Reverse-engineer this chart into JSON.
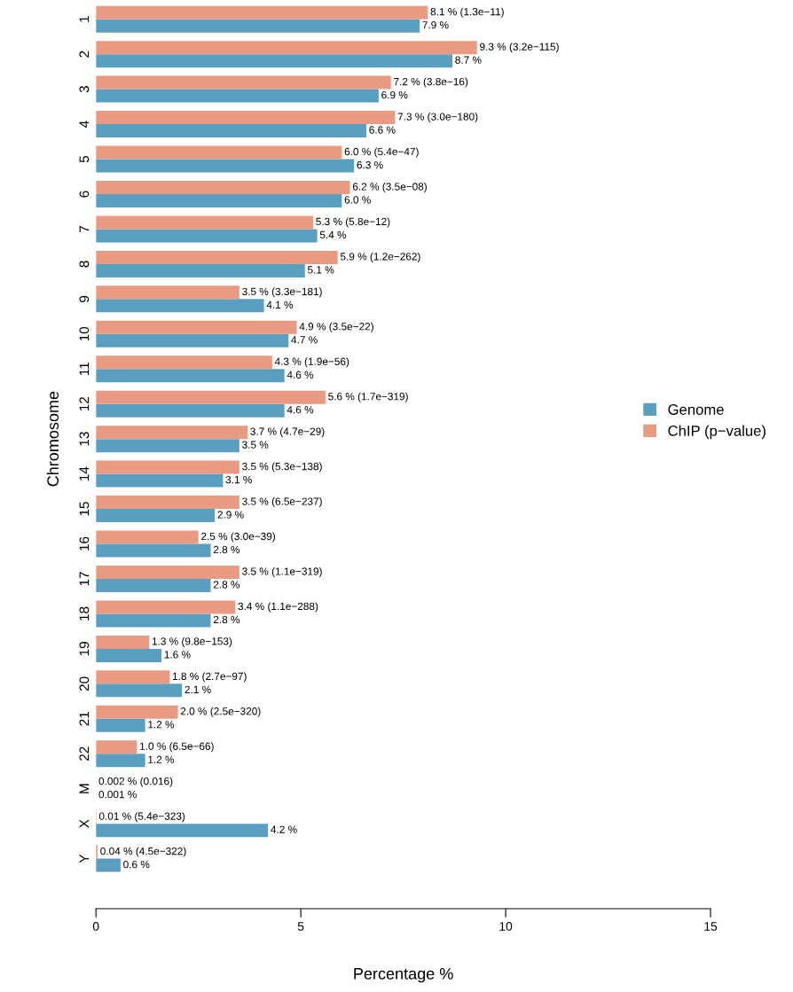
{
  "chart_data": {
    "type": "bar",
    "orientation": "horizontal",
    "xlabel": "Percentage %",
    "ylabel": "Chromosome",
    "categories": [
      "1",
      "2",
      "3",
      "4",
      "5",
      "6",
      "7",
      "8",
      "9",
      "10",
      "11",
      "12",
      "13",
      "14",
      "15",
      "16",
      "17",
      "18",
      "19",
      "20",
      "21",
      "22",
      "M",
      "X",
      "Y"
    ],
    "series": [
      {
        "name": "Genome",
        "color": "#5b9fc0",
        "values": [
          7.9,
          8.7,
          6.9,
          6.6,
          6.3,
          6.0,
          5.4,
          5.1,
          4.1,
          4.7,
          4.6,
          4.6,
          3.5,
          3.1,
          2.9,
          2.8,
          2.8,
          2.8,
          1.6,
          2.1,
          1.2,
          1.2,
          0.001,
          4.2,
          0.6
        ],
        "value_labels": [
          "7.9 %",
          "8.7 %",
          "6.9 %",
          "6.6 %",
          "6.3 %",
          "6.0 %",
          "5.4 %",
          "5.1 %",
          "4.1 %",
          "4.7 %",
          "4.6 %",
          "4.6 %",
          "3.5 %",
          "3.1 %",
          "2.9 %",
          "2.8 %",
          "2.8 %",
          "2.8 %",
          "1.6 %",
          "2.1 %",
          "1.2 %",
          "1.2 %",
          "0.001 %",
          "4.2 %",
          "0.6 %"
        ]
      },
      {
        "name": "ChIP (p−value)",
        "color": "#e99a82",
        "values": [
          8.1,
          9.3,
          7.2,
          7.3,
          6.0,
          6.2,
          5.3,
          5.9,
          3.5,
          4.9,
          4.3,
          5.6,
          3.7,
          3.5,
          3.5,
          2.5,
          3.5,
          3.4,
          1.3,
          1.8,
          2.0,
          1.0,
          0.002,
          0.01,
          0.04
        ],
        "value_labels": [
          "8.1 % (1.3e−11)",
          "9.3 % (3.2e−115)",
          "7.2 % (3.8e−16)",
          "7.3 % (3.0e−180)",
          "6.0 % (5.4e−47)",
          "6.2 % (3.5e−08)",
          "5.3 % (5.8e−12)",
          "5.9 % (1.2e−262)",
          "3.5 % (3.3e−181)",
          "4.9 % (3.5e−22)",
          "4.3 % (1.9e−56)",
          "5.6 % (1.7e−319)",
          "3.7 % (4.7e−29)",
          "3.5 % (5.3e−138)",
          "3.5 % (6.5e−237)",
          "2.5 % (3.0e−39)",
          "3.5 % (1.1e−319)",
          "3.4 % (1.1e−288)",
          "1.3 % (9.8e−153)",
          "1.8 % (2.7e−97)",
          "2.0 % (2.5e−320)",
          "1.0 % (6.5e−66)",
          "0.002 % (0.016)",
          "0.01 % (5.4e−323)",
          "0.04 % (4.5e−322)"
        ]
      }
    ],
    "xlim": [
      0,
      15
    ],
    "xticks": [
      0,
      5,
      10,
      15
    ],
    "grid": false,
    "legend": "right"
  }
}
